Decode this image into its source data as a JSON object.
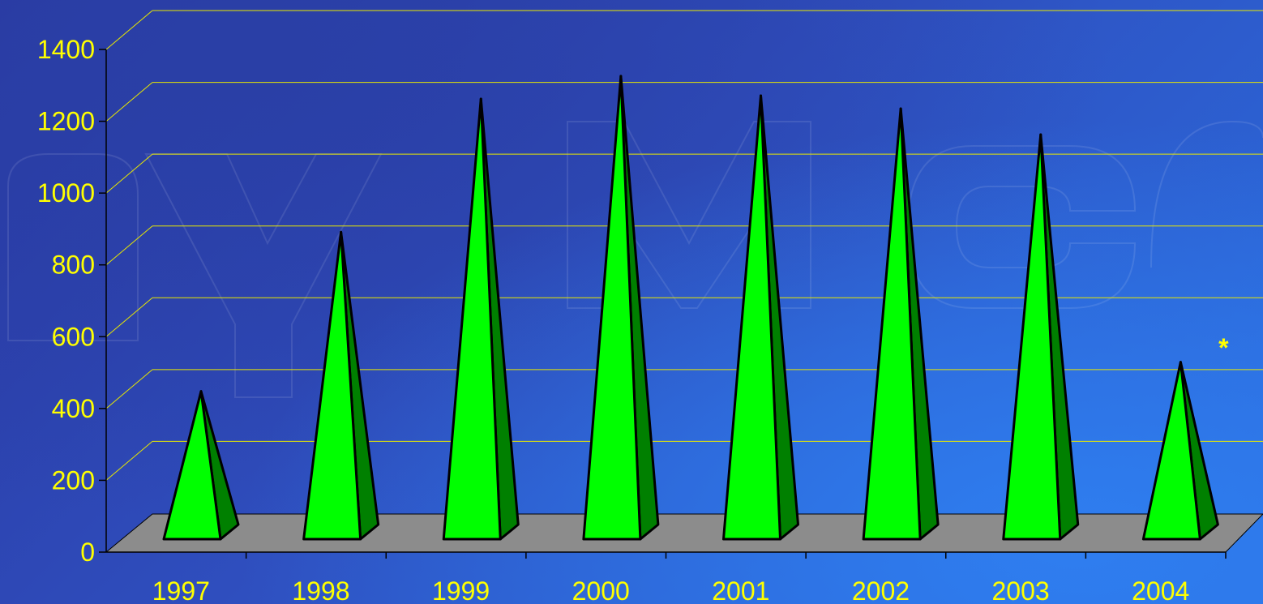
{
  "chart_data": {
    "type": "bar",
    "style": "3d-pyramid",
    "categories": [
      "1997",
      "1998",
      "1999",
      "2000",
      "2001",
      "2002",
      "2003",
      "2004"
    ],
    "values": [
      420,
      910,
      1320,
      1390,
      1330,
      1290,
      1210,
      510
    ],
    "ylim": [
      0,
      1400
    ],
    "yticks": [
      "0",
      "200",
      "400",
      "600",
      "800",
      "1000",
      "1200",
      "1400"
    ],
    "annotation": "*",
    "grid": true,
    "colors": {
      "text": "#ffff00",
      "grid": "#e8e800",
      "floor": "#8c8c8c",
      "pyramid_front": "#00ff00",
      "pyramid_side": "#008000",
      "outline": "#000000"
    }
  }
}
